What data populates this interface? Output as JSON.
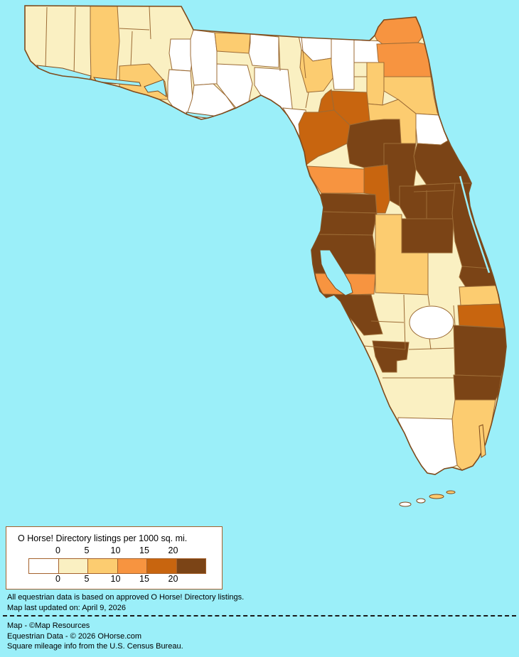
{
  "legend": {
    "title": "O Horse! Directory listings per 1000 sq. mi.",
    "tick_labels": [
      "0",
      "5",
      "10",
      "15",
      "20"
    ],
    "bucket_colors": [
      "#FFFFFF",
      "#FAF0C2",
      "#FCCC70",
      "#F79440",
      "#C8650F",
      "#7B4416"
    ],
    "bucket_ranges": [
      "0",
      "0-5",
      "5-10",
      "10-15",
      "15-20",
      "20+"
    ]
  },
  "notes": {
    "line1": "All equestrian data is based on approved O Horse! Directory listings.",
    "line2": "Map last updated on: April 9, 2026"
  },
  "credits": {
    "line1": "Map - ©Map Resources",
    "line2": "Equestrian Data - © 2026 OHorse.com",
    "line3": "Square mileage info from the U.S. Census Bureau."
  },
  "map_data": {
    "type": "choropleth",
    "region": "Florida counties",
    "unit": "O Horse! Directory listings per 1000 sq. mi.",
    "water_color": "#9BEFF9",
    "county_border_color": "#9C6B35",
    "coast_color": "#7E4A1C",
    "counties": [
      {
        "id": "escambia",
        "name": "Escambia",
        "bucket": 1
      },
      {
        "id": "santarosa",
        "name": "Santa Rosa",
        "bucket": 1
      },
      {
        "id": "okaloosa",
        "name": "Okaloosa",
        "bucket": 1
      },
      {
        "id": "walton",
        "name": "Walton",
        "bucket": 2
      },
      {
        "id": "holmes",
        "name": "Holmes",
        "bucket": 1
      },
      {
        "id": "washington",
        "name": "Washington",
        "bucket": 1
      },
      {
        "id": "bay",
        "name": "Bay",
        "bucket": 2
      },
      {
        "id": "jackson",
        "name": "Jackson",
        "bucket": 1
      },
      {
        "id": "calhoun",
        "name": "Calhoun",
        "bucket": 0
      },
      {
        "id": "gulf",
        "name": "Gulf",
        "bucket": 0
      },
      {
        "id": "liberty",
        "name": "Liberty",
        "bucket": 0
      },
      {
        "id": "franklin",
        "name": "Franklin",
        "bucket": 0
      },
      {
        "id": "gadsden",
        "name": "Gadsden",
        "bucket": 2
      },
      {
        "id": "leon",
        "name": "Leon",
        "bucket": 0
      },
      {
        "id": "wakulla",
        "name": "Wakulla",
        "bucket": 0
      },
      {
        "id": "jefferson",
        "name": "Jefferson",
        "bucket": 1
      },
      {
        "id": "madison",
        "name": "Madison",
        "bucket": 1
      },
      {
        "id": "taylor",
        "name": "Taylor",
        "bucket": 0
      },
      {
        "id": "hamilton",
        "name": "Hamilton",
        "bucket": 0
      },
      {
        "id": "suwannee",
        "name": "Suwannee",
        "bucket": 2
      },
      {
        "id": "lafayette",
        "name": "Lafayette",
        "bucket": 1
      },
      {
        "id": "dixie",
        "name": "Dixie",
        "bucket": 0
      },
      {
        "id": "columbia",
        "name": "Columbia",
        "bucket": 0
      },
      {
        "id": "baker",
        "name": "Baker",
        "bucket": 0
      },
      {
        "id": "union",
        "name": "Union",
        "bucket": 1
      },
      {
        "id": "bradford",
        "name": "Bradford",
        "bucket": 1
      },
      {
        "id": "nassau",
        "name": "Nassau",
        "bucket": 3
      },
      {
        "id": "duval",
        "name": "Duval",
        "bucket": 3
      },
      {
        "id": "clay",
        "name": "Clay",
        "bucket": 2
      },
      {
        "id": "stjohns",
        "name": "St. Johns",
        "bucket": 2
      },
      {
        "id": "putnam",
        "name": "Putnam",
        "bucket": 2
      },
      {
        "id": "flagler",
        "name": "Flagler",
        "bucket": 0
      },
      {
        "id": "gilchrist",
        "name": "Gilchrist",
        "bucket": 4
      },
      {
        "id": "alachua",
        "name": "Alachua",
        "bucket": 4
      },
      {
        "id": "levy",
        "name": "Levy",
        "bucket": 4
      },
      {
        "id": "marion",
        "name": "Marion",
        "bucket": 5
      },
      {
        "id": "volusia",
        "name": "Volusia",
        "bucket": 5
      },
      {
        "id": "lake",
        "name": "Lake",
        "bucket": 5
      },
      {
        "id": "seminole",
        "name": "Seminole",
        "bucket": 5
      },
      {
        "id": "orange",
        "name": "Orange",
        "bucket": 5
      },
      {
        "id": "osceola",
        "name": "Osceola",
        "bucket": 5
      },
      {
        "id": "brevard",
        "name": "Brevard",
        "bucket": 5
      },
      {
        "id": "indianriver",
        "name": "Indian River",
        "bucket": 5
      },
      {
        "id": "citrus",
        "name": "Citrus",
        "bucket": 3
      },
      {
        "id": "sumter",
        "name": "Sumter",
        "bucket": 4
      },
      {
        "id": "hernando",
        "name": "Hernando",
        "bucket": 5
      },
      {
        "id": "pasco",
        "name": "Pasco",
        "bucket": 5
      },
      {
        "id": "pinellas",
        "name": "Pinellas",
        "bucket": 5
      },
      {
        "id": "hillsborough",
        "name": "Hillsborough",
        "bucket": 5
      },
      {
        "id": "polk",
        "name": "Polk",
        "bucket": 2
      },
      {
        "id": "manatee",
        "name": "Manatee",
        "bucket": 3
      },
      {
        "id": "sarasota",
        "name": "Sarasota",
        "bucket": 5
      },
      {
        "id": "hardee",
        "name": "Hardee",
        "bucket": 1
      },
      {
        "id": "desoto",
        "name": "DeSoto",
        "bucket": 1
      },
      {
        "id": "highlands",
        "name": "Highlands",
        "bucket": 1
      },
      {
        "id": "okeechobee",
        "name": "Okeechobee",
        "bucket": 1
      },
      {
        "id": "stlucie",
        "name": "St. Lucie",
        "bucket": 2
      },
      {
        "id": "martin",
        "name": "Martin",
        "bucket": 4
      },
      {
        "id": "palmbeach",
        "name": "Palm Beach",
        "bucket": 5
      },
      {
        "id": "broward",
        "name": "Broward",
        "bucket": 5
      },
      {
        "id": "miamidade",
        "name": "Miami-Dade",
        "bucket": 2
      },
      {
        "id": "monroe",
        "name": "Monroe",
        "bucket": 0
      },
      {
        "id": "collier",
        "name": "Collier",
        "bucket": 1
      },
      {
        "id": "lee",
        "name": "Lee",
        "bucket": 5
      },
      {
        "id": "hendry",
        "name": "Hendry",
        "bucket": 1
      },
      {
        "id": "glades",
        "name": "Glades",
        "bucket": 1
      },
      {
        "id": "charlotte",
        "name": "Charlotte",
        "bucket": 1
      }
    ]
  }
}
